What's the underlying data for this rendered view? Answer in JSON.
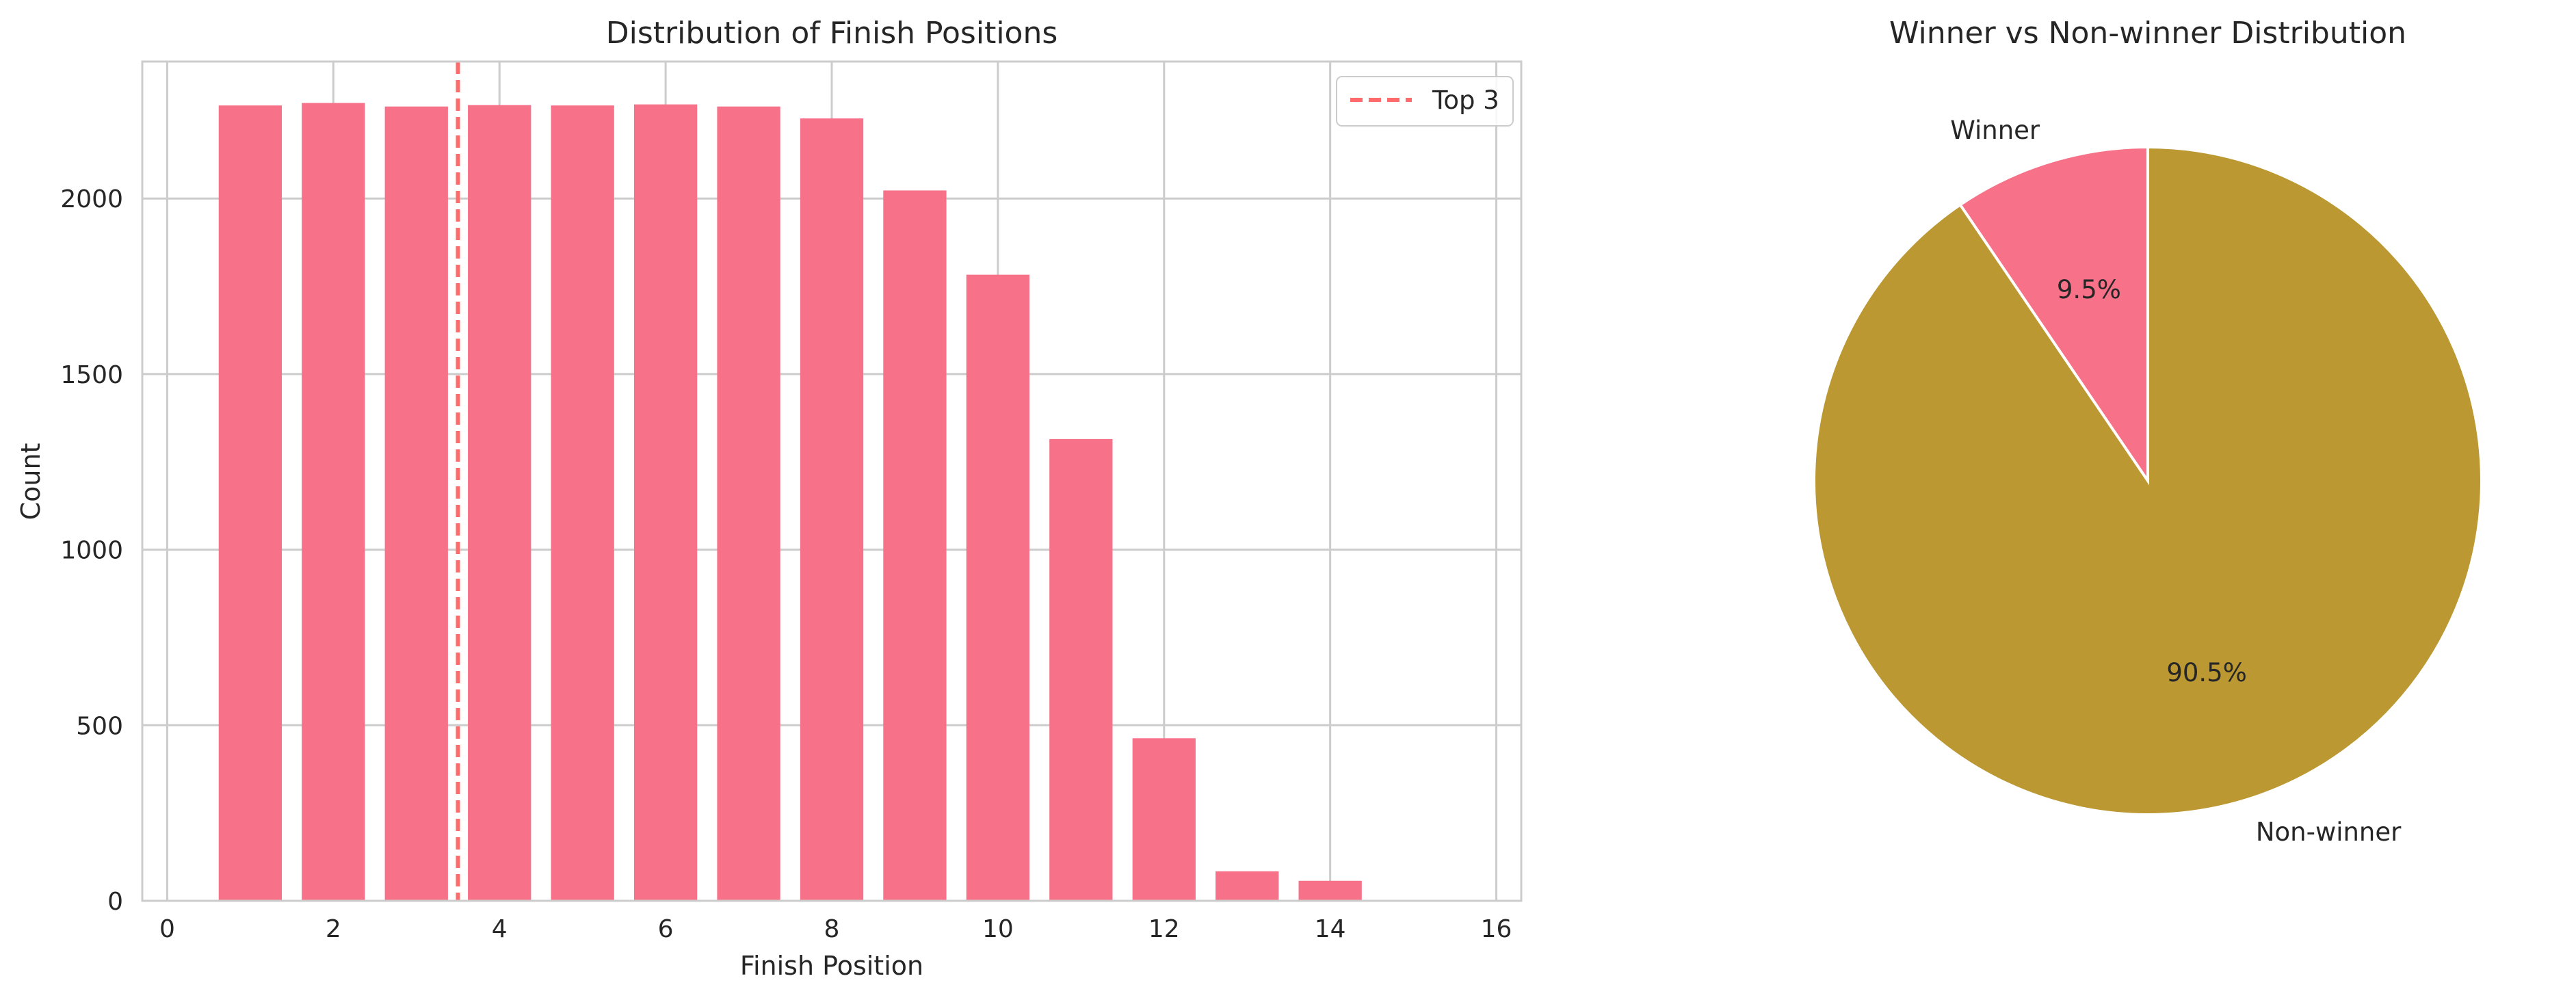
{
  "chart_data": [
    {
      "type": "bar",
      "title": "Distribution of Finish Positions",
      "xlabel": "Finish Position",
      "ylabel": "Count",
      "x": [
        1,
        2,
        3,
        4,
        5,
        6,
        7,
        8,
        9,
        10,
        11,
        12,
        13,
        14
      ],
      "values": [
        2265,
        2272,
        2262,
        2266,
        2265,
        2268,
        2262,
        2228,
        2023,
        1783,
        1315,
        463,
        84,
        57
      ],
      "xlim": [
        -0.3,
        16.3
      ],
      "ylim": [
        0,
        2390
      ],
      "xticks": [
        0,
        2,
        4,
        6,
        8,
        10,
        12,
        14,
        16
      ],
      "yticks": [
        0,
        500,
        1000,
        1500,
        2000
      ],
      "bar_color": "#f77189",
      "reference_line": {
        "x": 3.5,
        "style": "dashed",
        "color": "#ff6b6b",
        "label": "Top 3"
      },
      "legend": {
        "position": "top-right",
        "entries": [
          "Top 3"
        ]
      },
      "grid": true
    },
    {
      "type": "pie",
      "title": "Winner vs Non-winner Distribution",
      "labels": [
        "Winner",
        "Non-winner"
      ],
      "values": [
        9.5,
        90.5
      ],
      "autopct": [
        "9.5%",
        "90.5%"
      ],
      "colors": [
        "#f77189",
        "#bb9832"
      ],
      "start_angle": 90,
      "direction": "counterclockwise"
    }
  ]
}
